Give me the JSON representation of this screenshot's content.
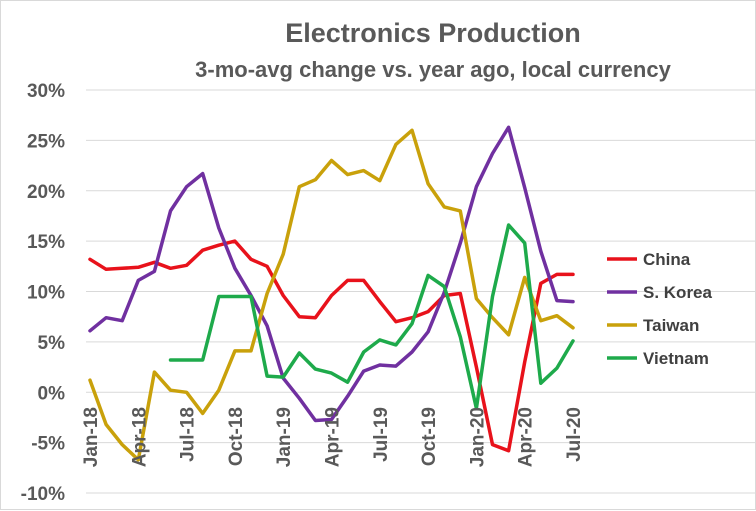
{
  "chart_data": {
    "type": "line",
    "title": "Electronics Production",
    "subtitle": "3-mo-avg change vs. year ago, local currency",
    "xlabel": "",
    "ylabel": "",
    "ylim": [
      -10,
      30
    ],
    "y_ticks": [
      -10,
      -5,
      0,
      5,
      10,
      15,
      20,
      25,
      30
    ],
    "y_tick_labels": [
      "-10%",
      "-5%",
      "0%",
      "5%",
      "10%",
      "15%",
      "20%",
      "25%",
      "30%"
    ],
    "x": [
      "Jan-18",
      "Feb-18",
      "Mar-18",
      "Apr-18",
      "May-18",
      "Jun-18",
      "Jul-18",
      "Aug-18",
      "Sep-18",
      "Oct-18",
      "Nov-18",
      "Dec-18",
      "Jan-19",
      "Feb-19",
      "Mar-19",
      "Apr-19",
      "May-19",
      "Jun-19",
      "Jul-19",
      "Aug-19",
      "Sep-19",
      "Oct-19",
      "Nov-19",
      "Dec-19",
      "Jan-20",
      "Feb-20",
      "Mar-20",
      "Apr-20",
      "May-20",
      "Jun-20",
      "Jul-20"
    ],
    "x_tick_labels": [
      "Jan-18",
      "Apr-18",
      "Jul-18",
      "Oct-18",
      "Jan-19",
      "Apr-19",
      "Jul-19",
      "Oct-19",
      "Jan-20",
      "Apr-20",
      "Jul-20"
    ],
    "x_tick_index": [
      0,
      3,
      6,
      9,
      12,
      15,
      18,
      21,
      24,
      27,
      30
    ],
    "grid": true,
    "legend_position": "right",
    "series": [
      {
        "name": "China",
        "color": "#e8121b",
        "values": [
          13.2,
          12.2,
          12.3,
          12.4,
          12.9,
          12.3,
          12.6,
          14.1,
          14.6,
          15.0,
          13.2,
          12.5,
          9.6,
          7.5,
          7.4,
          9.6,
          11.1,
          11.1,
          9.0,
          7.0,
          7.4,
          8.0,
          9.6,
          9.8,
          2.5,
          -5.2,
          -5.8,
          3.0,
          10.8,
          11.7,
          11.7
        ]
      },
      {
        "name": "S. Korea",
        "color": "#7030a0",
        "values": [
          6.1,
          7.4,
          7.1,
          11.1,
          12.0,
          18.0,
          20.4,
          21.7,
          16.3,
          12.3,
          9.6,
          6.6,
          1.4,
          -0.6,
          -2.8,
          -2.7,
          -0.4,
          2.1,
          2.7,
          2.6,
          4.0,
          6.0,
          9.9,
          14.8,
          20.4,
          23.7,
          26.3,
          20.3,
          14.0,
          9.1,
          9.0
        ]
      },
      {
        "name": "Taiwan",
        "color": "#c9a10b",
        "values": [
          1.2,
          -3.2,
          -5.2,
          -6.7,
          2.0,
          0.2,
          0.0,
          -2.1,
          0.2,
          4.1,
          4.1,
          9.8,
          13.7,
          20.4,
          21.1,
          23.0,
          21.6,
          22.0,
          21.0,
          24.6,
          26.0,
          20.7,
          18.4,
          18.0,
          9.3,
          7.4,
          5.7,
          11.4,
          7.1,
          7.6,
          6.4
        ]
      },
      {
        "name": "Vietnam",
        "color": "#1eaa4b",
        "values": [
          null,
          null,
          null,
          null,
          null,
          3.2,
          3.2,
          3.2,
          9.5,
          9.5,
          9.5,
          1.6,
          1.5,
          3.9,
          2.3,
          1.9,
          1.0,
          4.0,
          5.2,
          4.7,
          6.8,
          11.6,
          10.5,
          5.5,
          -1.6,
          9.5,
          16.6,
          14.8,
          0.9,
          2.4,
          5.1
        ]
      }
    ]
  }
}
